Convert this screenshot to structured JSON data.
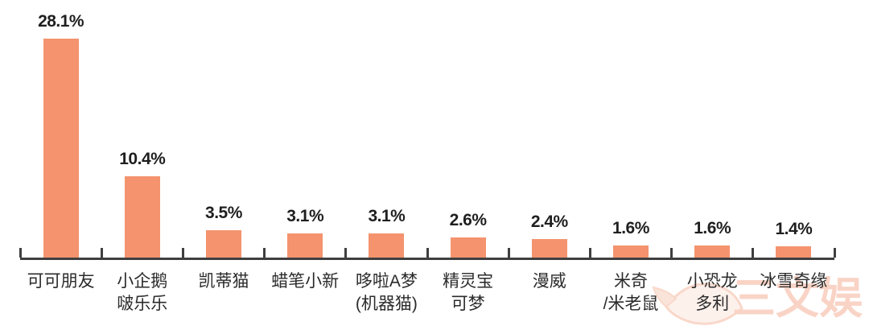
{
  "chart_data": {
    "type": "bar",
    "categories": [
      "可可朋友",
      "小企鹅啵乐乐",
      "凯蒂猫",
      "蜡笔小新",
      "哆啦A梦（机器猫）",
      "精灵宝可梦",
      "漫威",
      "米奇/米老鼠",
      "小恐龙多利",
      "冰雪奇缘"
    ],
    "category_lines": [
      [
        "可可朋友"
      ],
      [
        "小企鹅",
        "啵乐乐"
      ],
      [
        "凯蒂猫"
      ],
      [
        "蜡笔小新"
      ],
      [
        "哆啦A梦",
        "(机器猫)"
      ],
      [
        "精灵宝",
        "可梦"
      ],
      [
        "漫威"
      ],
      [
        "米奇",
        "/米老鼠"
      ],
      [
        "小恐龙",
        "多利"
      ],
      [
        "冰雪奇缘"
      ]
    ],
    "values": [
      28.1,
      10.4,
      3.5,
      3.1,
      3.1,
      2.6,
      2.4,
      1.6,
      1.6,
      1.4
    ],
    "value_labels": [
      "28.1%",
      "10.4%",
      "3.5%",
      "3.1%",
      "3.1%",
      "2.6%",
      "2.4%",
      "1.6%",
      "1.6%",
      "1.4%"
    ],
    "title": "",
    "xlabel": "",
    "ylabel": "",
    "ylim": [
      0,
      30
    ],
    "grid": false,
    "legend": false,
    "bar_color": "#F4936E"
  },
  "colors": {
    "bar": "#F4936E",
    "axis": "#3f3f3f",
    "value_label": "#1f1f1f",
    "category_label": "#2b2b2b",
    "watermark": "#F0936B"
  },
  "watermark": {
    "text": "三文娱"
  }
}
